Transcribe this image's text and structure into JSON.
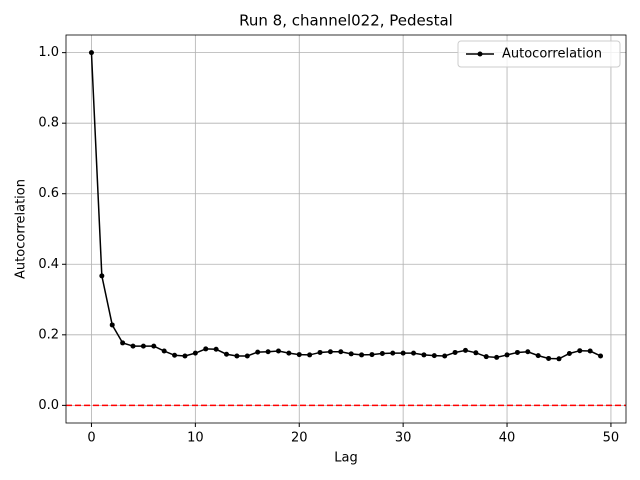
{
  "chart_data": {
    "type": "line",
    "title": "Run 8, channel022, Pedestal",
    "xlabel": "Lag",
    "ylabel": "Autocorrelation",
    "x": [
      0,
      1,
      2,
      3,
      4,
      5,
      6,
      7,
      8,
      9,
      10,
      11,
      12,
      13,
      14,
      15,
      16,
      17,
      18,
      19,
      20,
      21,
      22,
      23,
      24,
      25,
      26,
      27,
      28,
      29,
      30,
      31,
      32,
      33,
      34,
      35,
      36,
      37,
      38,
      39,
      40,
      41,
      42,
      43,
      44,
      45,
      46,
      47,
      48,
      49
    ],
    "series": [
      {
        "name": "Autocorrelation",
        "color": "#000000",
        "values": [
          1.0,
          0.367,
          0.228,
          0.177,
          0.168,
          0.168,
          0.168,
          0.154,
          0.142,
          0.14,
          0.148,
          0.16,
          0.159,
          0.145,
          0.14,
          0.14,
          0.151,
          0.152,
          0.154,
          0.148,
          0.144,
          0.143,
          0.15,
          0.152,
          0.152,
          0.146,
          0.143,
          0.144,
          0.147,
          0.148,
          0.148,
          0.148,
          0.143,
          0.141,
          0.14,
          0.15,
          0.156,
          0.149,
          0.138,
          0.136,
          0.143,
          0.15,
          0.152,
          0.141,
          0.133,
          0.132,
          0.147,
          0.155,
          0.154,
          0.14
        ]
      }
    ],
    "hline": {
      "value": 0,
      "color": "#ff0000"
    },
    "xlim": [
      -2.45,
      51.45
    ],
    "ylim": [
      -0.05,
      1.05
    ],
    "xticks": [
      0,
      10,
      20,
      30,
      40,
      50
    ],
    "yticks": [
      {
        "value": 0,
        "label": "0.0"
      },
      {
        "value": 0.2,
        "label": "0.2"
      },
      {
        "value": 0.4,
        "label": "0.4"
      },
      {
        "value": 0.6,
        "label": "0.6"
      },
      {
        "value": 0.8,
        "label": "0.8"
      },
      {
        "value": 1,
        "label": "1.0"
      }
    ],
    "grid": true,
    "legend": "upper right"
  }
}
